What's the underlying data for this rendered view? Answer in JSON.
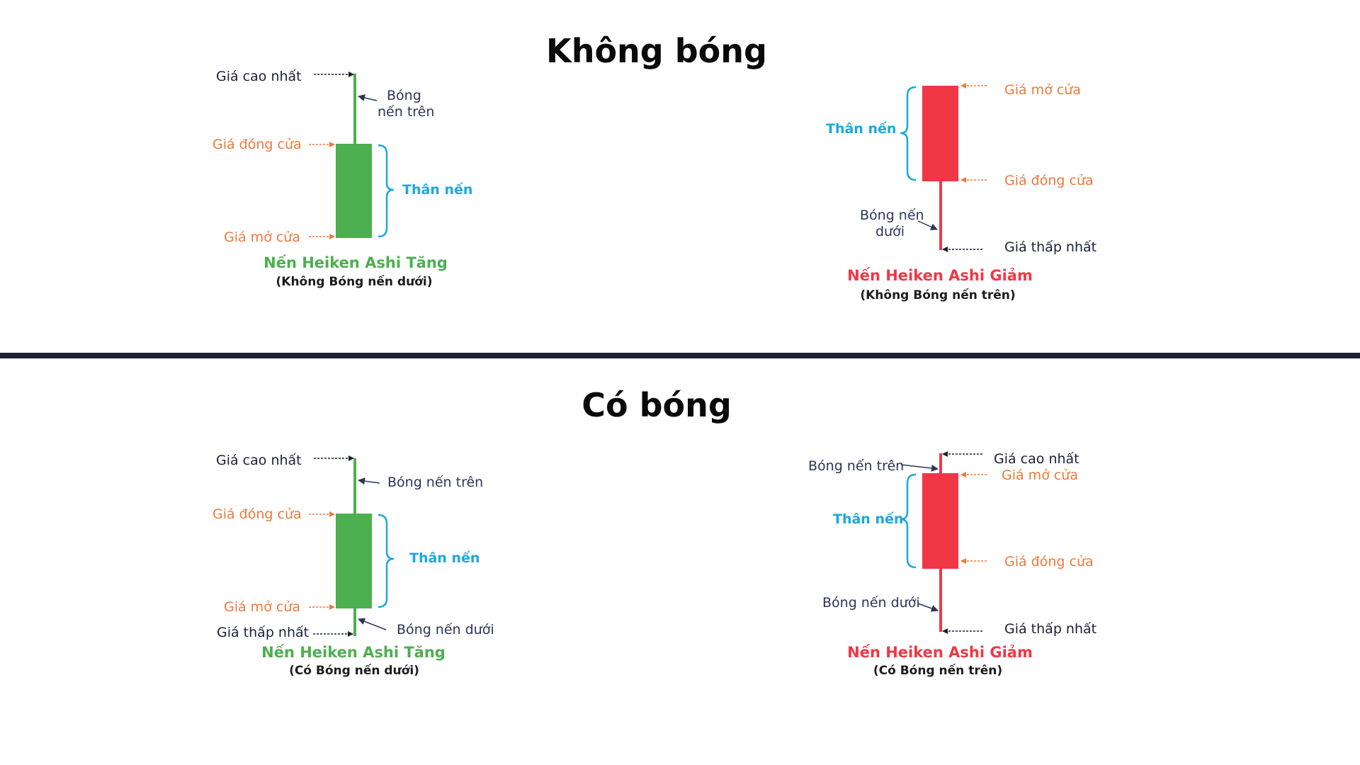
{
  "sections": {
    "no_shadow": {
      "title": "Không bóng",
      "bull": {
        "high": "Giá cao nhất",
        "upper_wick_l1": "Bóng",
        "upper_wick_l2": "nến trên",
        "close": "Giá đóng cửa",
        "body": "Thân nến",
        "open": "Giá mở cửa",
        "caption": "Nến Heiken Ashi Tăng",
        "sub": "(Không Bóng nến dưới)"
      },
      "bear": {
        "open": "Giá mở cửa",
        "body": "Thân nến",
        "close": "Giá đóng cửa",
        "lower_wick_l1": "Bóng nến",
        "lower_wick_l2": "dưới",
        "low": "Giá thấp nhất",
        "caption": "Nến Heiken Ashi Giảm",
        "sub": "(Không Bóng nến trên)"
      }
    },
    "with_shadow": {
      "title": "Có bóng",
      "bull": {
        "high": "Giá cao nhất",
        "upper_wick": "Bóng nến trên",
        "close": "Giá đóng cửa",
        "body": "Thân nến",
        "open": "Giá mở cửa",
        "low": "Giá thấp nhất",
        "lower_wick": "Bóng nến dưới",
        "caption": "Nến Heiken Ashi Tăng",
        "sub": "(Có Bóng nến dưới)"
      },
      "bear": {
        "upper_wick": "Bóng nến trên",
        "high": "Giá cao nhất",
        "open": "Giá mở cửa",
        "body": "Thân nến",
        "close": "Giá đóng cửa",
        "lower_wick": "Bóng nến dưới",
        "low": "Giá thấp nhất",
        "caption": "Nến Heiken Ashi Giảm",
        "sub": "(Có Bóng nến trên)"
      }
    }
  },
  "colors": {
    "bull": "#4caf50",
    "bear": "#f03746",
    "price_label": "#f07838",
    "body_label": "#1aa8e0",
    "wick_label": "#2c3559",
    "divider": "#1c2035"
  }
}
